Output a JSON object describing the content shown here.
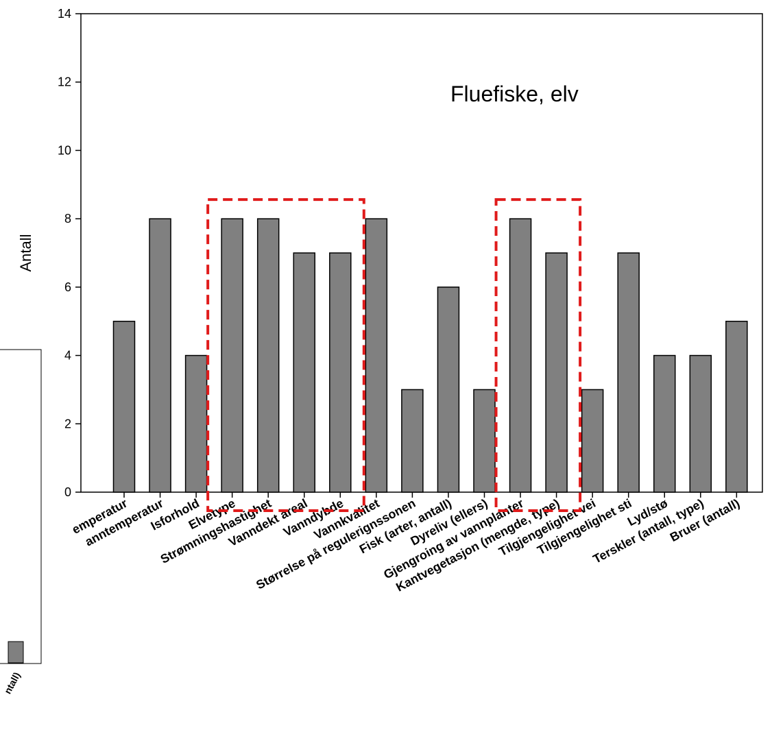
{
  "chart_data": {
    "type": "bar",
    "title": "",
    "annotation": "Fluefiske, elv",
    "ylabel": "Antall",
    "xlabel": "",
    "ylim": [
      0,
      14
    ],
    "yticks": [
      0,
      2,
      4,
      6,
      8,
      10,
      12,
      14
    ],
    "grid": false,
    "legend": "none",
    "bar_color": "#808080",
    "highlight_color": "#e01b1b",
    "categories": [
      "emperatur",
      "anntemperatur",
      "Isforhold",
      "Elvetype",
      "Strømningshastighet",
      "Vanndekt areal",
      "Vanndybde",
      "Vannkvalitet",
      "Størrelse på regulerignssonen",
      "Fisk (arter, antall)",
      "Dyreliv (ellers)",
      "Gjengroing av vannplanter",
      "Kantvegetasjon (mengde, type)",
      "Tilgjengelighet vei",
      "Tilgjengelighet sti",
      "Lyd/stø",
      "Terskler (antall, type)",
      "Bruer (antall)"
    ],
    "values": [
      5,
      8,
      4,
      8,
      8,
      7,
      7,
      8,
      3,
      6,
      3,
      8,
      7,
      3,
      7,
      4,
      4,
      5
    ],
    "highlighted_groups": [
      [
        "Elvetype",
        "Strømningshastighet",
        "Vanndekt areal",
        "Vanndybde"
      ],
      [
        "Gjengroing av vannplanter",
        "Kantvegetasjon (mengde, type)"
      ]
    ],
    "background_chart_fragment": {
      "tick_label_fragment": "ntall)"
    }
  }
}
